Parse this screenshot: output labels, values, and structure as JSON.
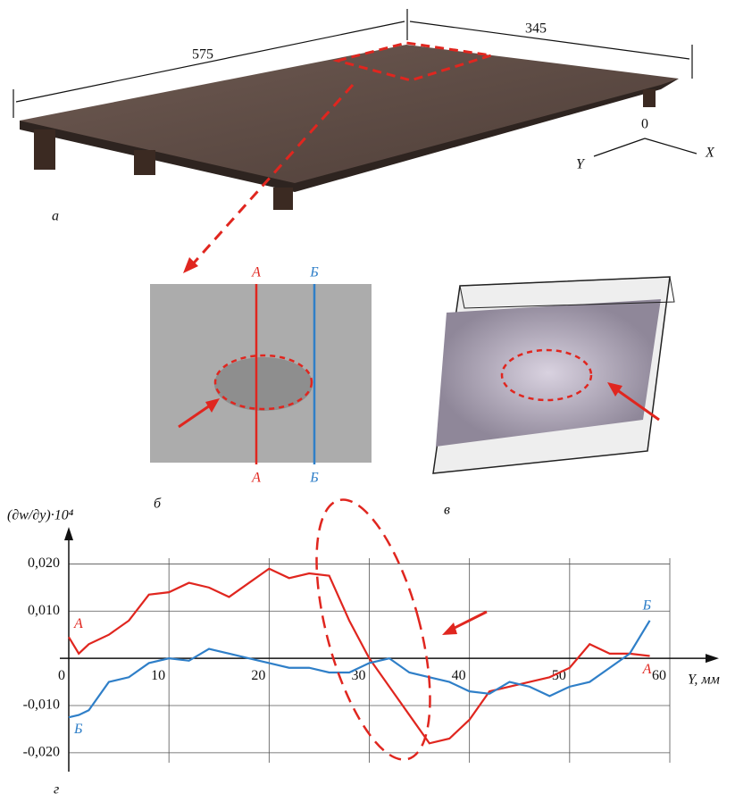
{
  "panels": {
    "a": {
      "label": "а",
      "dim_length": "575",
      "dim_width": "345",
      "axis_origin": "0",
      "axis_x": "X",
      "axis_y": "Y"
    },
    "b": {
      "label": "б",
      "line_a": "А",
      "line_b": "Б"
    },
    "v": {
      "label": "в"
    }
  },
  "chart_data": {
    "type": "line",
    "label": "г",
    "y_label": "(∂w/∂y)·10⁴",
    "x_label": "Y, мм",
    "x": [
      0,
      1,
      2,
      4,
      6,
      8,
      10,
      12,
      14,
      16,
      18,
      20,
      22,
      24,
      26,
      28,
      30,
      32,
      34,
      36,
      38,
      40,
      42,
      44,
      46,
      48,
      50,
      52,
      54,
      56,
      58
    ],
    "series": [
      {
        "name": "А",
        "color": "#e0261f",
        "values": [
          0.0045,
          0.001,
          0.003,
          0.005,
          0.008,
          0.0135,
          0.014,
          0.016,
          0.015,
          0.013,
          0.016,
          0.019,
          0.017,
          0.018,
          0.0175,
          0.008,
          0.0,
          -0.006,
          -0.012,
          -0.018,
          -0.017,
          -0.013,
          -0.007,
          -0.006,
          -0.005,
          -0.004,
          -0.002,
          0.003,
          0.001,
          0.001,
          0.0005
        ]
      },
      {
        "name": "Б",
        "color": "#2f7fc8",
        "values": [
          -0.0125,
          -0.012,
          -0.011,
          -0.005,
          -0.004,
          -0.001,
          0.0,
          -0.0005,
          0.002,
          0.001,
          0.0,
          -0.001,
          -0.002,
          -0.002,
          -0.003,
          -0.003,
          -0.001,
          0.0,
          -0.003,
          -0.004,
          -0.005,
          -0.007,
          -0.0075,
          -0.005,
          -0.006,
          -0.008,
          -0.006,
          -0.005,
          -0.002,
          0.001,
          0.008
        ]
      }
    ],
    "xlim": [
      0,
      60
    ],
    "xticks": [
      0,
      10,
      20,
      30,
      40,
      50,
      60
    ],
    "ylim": [
      -0.024,
      0.025
    ],
    "yticks": [
      {
        "value": -0.02,
        "label": "-0,020"
      },
      {
        "value": -0.01,
        "label": "-0,010"
      },
      {
        "value": 0.01,
        "label": "0,010"
      },
      {
        "value": 0.02,
        "label": "0,020"
      }
    ],
    "grid": true
  }
}
